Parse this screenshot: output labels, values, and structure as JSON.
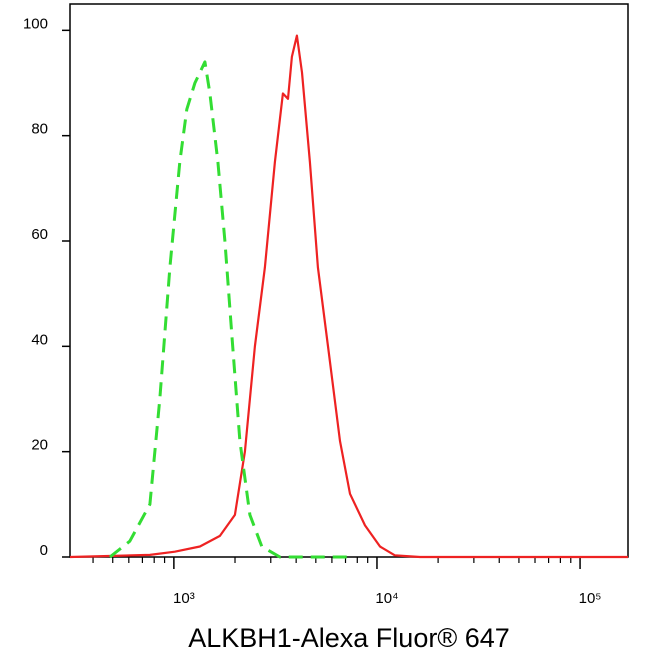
{
  "chart_data": {
    "type": "line",
    "x_label": "ALKBH1-Alexa Fluor® 647",
    "log_x": true,
    "xlim": [
      308,
      172200
    ],
    "xticks": [
      {
        "value": 1000,
        "label": "10³"
      },
      {
        "value": 10000,
        "label": "10⁴"
      },
      {
        "value": 100000,
        "label": "10⁵"
      }
    ],
    "xminorticks": [
      400,
      500,
      600,
      700,
      800,
      900,
      2000,
      3000,
      4000,
      5000,
      6000,
      7000,
      8000,
      9000,
      20000,
      30000,
      40000,
      50000,
      60000,
      70000,
      80000,
      90000
    ],
    "ylim": [
      0,
      105
    ],
    "yticks": [
      0,
      20,
      40,
      60,
      80,
      100
    ],
    "series": [
      {
        "color": "#ee2222",
        "dash": false,
        "x": [
          308,
          762,
          1011,
          1343,
          1686,
          1997,
          2238,
          2506,
          2807,
          3145,
          3441,
          3645,
          3812,
          4036,
          4273,
          4677,
          5119,
          5737,
          6577,
          7366,
          8730,
          10350,
          12270,
          16290,
          40360,
          172200
        ],
        "values": [
          0,
          0.4,
          1,
          2,
          4,
          8,
          20,
          40,
          55,
          75,
          88,
          87,
          95,
          99,
          92,
          75,
          55,
          40,
          22,
          12,
          6,
          2,
          0.3,
          0,
          0,
          0
        ]
      },
      {
        "color": "#33dd33",
        "dash": true,
        "x": [
          484,
          607,
          762,
          853,
          956,
          1070,
          1158,
          1269,
          1343,
          1421,
          1504,
          1647,
          1783,
          1930,
          2114,
          2368,
          2711,
          3327,
          7366
        ],
        "values": [
          0,
          3,
          10,
          30,
          55,
          75,
          85,
          90,
          92,
          94,
          88,
          75,
          60,
          42,
          22,
          8,
          2,
          0,
          0
        ]
      }
    ]
  }
}
